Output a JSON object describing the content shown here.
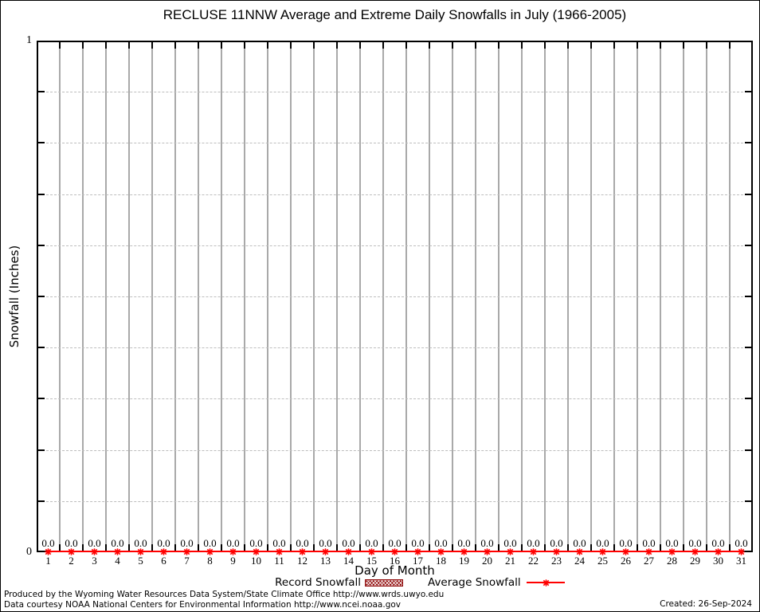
{
  "title": "RECLUSE 11NNW Average and Extreme Daily Snowfalls in July (1966-2005)",
  "y_axis": {
    "label": "Snowfall (Inches)"
  },
  "x_axis": {
    "label": "Day of Month"
  },
  "legend": {
    "record": "Record Snowfall",
    "average": "Average Snowfall"
  },
  "footer": {
    "line1": "Produced by the Wyoming Water Resources Data System/State Climate Office http://www.wrds.uwyo.edu",
    "line2": "Data courtesy NOAA National Centers for Environmental Information http://www.ncei.noaa.gov",
    "created": "Created: 26-Sep-2024"
  },
  "colors": {
    "average_line": "#ff0000",
    "record_fill": "#8b0000",
    "grid_vertical": "#a9a9a9",
    "grid_horizontal": "#bdbdbd",
    "axis": "#000000"
  },
  "chart_data": {
    "type": "bar",
    "title": "RECLUSE 11NNW Average and Extreme Daily Snowfalls in July (1966-2005)",
    "xlabel": "Day of Month",
    "ylabel": "Snowfall (Inches)",
    "xlim": [
      0.5,
      31.5
    ],
    "ylim": [
      0,
      1
    ],
    "categories": [
      1,
      2,
      3,
      4,
      5,
      6,
      7,
      8,
      9,
      10,
      11,
      12,
      13,
      14,
      15,
      16,
      17,
      18,
      19,
      20,
      21,
      22,
      23,
      24,
      25,
      26,
      27,
      28,
      29,
      30,
      31
    ],
    "series": [
      {
        "name": "Record Snowfall",
        "type": "bar",
        "style": "hatched",
        "color": "#8b0000",
        "values": [
          0,
          0,
          0,
          0,
          0,
          0,
          0,
          0,
          0,
          0,
          0,
          0,
          0,
          0,
          0,
          0,
          0,
          0,
          0,
          0,
          0,
          0,
          0,
          0,
          0,
          0,
          0,
          0,
          0,
          0,
          0
        ]
      },
      {
        "name": "Average Snowfall",
        "type": "line",
        "marker": "asterisk",
        "color": "#ff0000",
        "values": [
          0,
          0,
          0,
          0,
          0,
          0,
          0,
          0,
          0,
          0,
          0,
          0,
          0,
          0,
          0,
          0,
          0,
          0,
          0,
          0,
          0,
          0,
          0,
          0,
          0,
          0,
          0,
          0,
          0,
          0,
          0
        ]
      }
    ],
    "point_labels": [
      "0.0",
      "0.0",
      "0.0",
      "0.0",
      "0.0",
      "0.0",
      "0.0",
      "0.0",
      "0.0",
      "0.0",
      "0.0",
      "0.0",
      "0.0",
      "0.0",
      "0.0",
      "0.0",
      "0.0",
      "0.0",
      "0.0",
      "0.0",
      "0.0",
      "0.0",
      "0.0",
      "0.0",
      "0.0",
      "0.0",
      "0.0",
      "0.0",
      "0.0",
      "0.0",
      "0.0"
    ],
    "y_tick_labels": [
      {
        "value": 0,
        "label": "0"
      },
      {
        "value": 1,
        "label": "1"
      }
    ],
    "y_minor_tick_interval": 0.1,
    "grid": true,
    "legend_position": "bottom-center"
  }
}
